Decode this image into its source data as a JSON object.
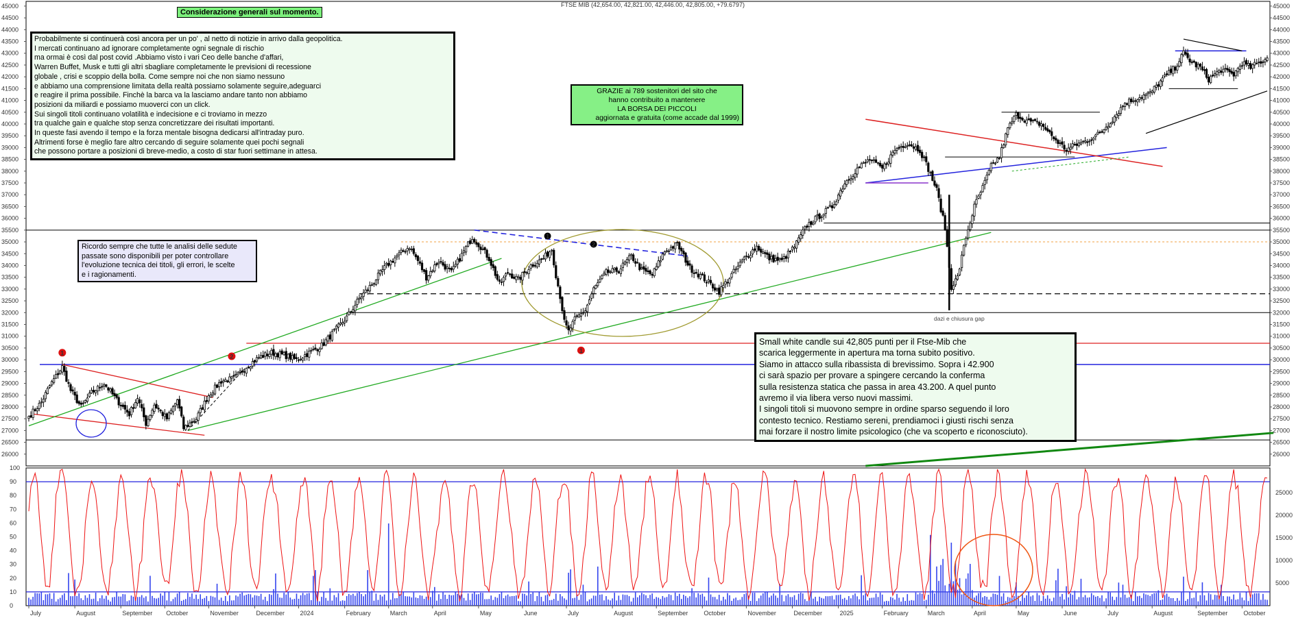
{
  "chart_data": {
    "type": "candlestick",
    "title": "FTSE MIB (42,654.00, 42,821.00, 42,446.00, 42,805.00, +79.6797)",
    "x_months": [
      "July",
      "August",
      "September",
      "October",
      "November",
      "December",
      "2024",
      "February",
      "March",
      "April",
      "May",
      "June",
      "July",
      "August",
      "September",
      "October",
      "November",
      "December",
      "2025",
      "February",
      "March",
      "April",
      "May",
      "June",
      "July",
      "August",
      "September",
      "October"
    ],
    "price_ylim": [
      25500,
      45200
    ],
    "price_ticks": [
      26000,
      26500,
      27000,
      27500,
      28000,
      28500,
      29000,
      29500,
      30000,
      30500,
      31000,
      31500,
      32000,
      32500,
      33000,
      33500,
      34000,
      34500,
      35000,
      35500,
      36000,
      36500,
      37000,
      37500,
      38000,
      38500,
      39000,
      39500,
      40000,
      40500,
      41000,
      41500,
      42000,
      42500,
      43000,
      43500,
      44000,
      44500,
      45000
    ],
    "close_anchors": [
      [
        0,
        27600
      ],
      [
        6,
        28200
      ],
      [
        10,
        28900
      ],
      [
        16,
        29700
      ],
      [
        20,
        28700
      ],
      [
        25,
        28000
      ],
      [
        30,
        28600
      ],
      [
        36,
        29000
      ],
      [
        42,
        28300
      ],
      [
        48,
        27700
      ],
      [
        52,
        28400
      ],
      [
        56,
        27300
      ],
      [
        60,
        28100
      ],
      [
        66,
        27500
      ],
      [
        71,
        28300
      ],
      [
        74,
        27100
      ],
      [
        80,
        27500
      ],
      [
        86,
        28500
      ],
      [
        92,
        29100
      ],
      [
        98,
        29200
      ],
      [
        104,
        29700
      ],
      [
        110,
        30100
      ],
      [
        116,
        30300
      ],
      [
        122,
        30200
      ],
      [
        128,
        30000
      ],
      [
        134,
        30300
      ],
      [
        140,
        30600
      ],
      [
        146,
        31200
      ],
      [
        152,
        31800
      ],
      [
        158,
        32600
      ],
      [
        164,
        33200
      ],
      [
        170,
        33900
      ],
      [
        176,
        34400
      ],
      [
        182,
        34800
      ],
      [
        186,
        34200
      ],
      [
        190,
        33500
      ],
      [
        196,
        34200
      ],
      [
        202,
        33700
      ],
      [
        208,
        34600
      ],
      [
        212,
        35200
      ],
      [
        216,
        34800
      ],
      [
        220,
        34300
      ],
      [
        225,
        33200
      ],
      [
        229,
        33700
      ],
      [
        234,
        33400
      ],
      [
        240,
        34000
      ],
      [
        246,
        34300
      ],
      [
        250,
        34700
      ],
      [
        252,
        33600
      ],
      [
        254,
        32700
      ],
      [
        256,
        31600
      ],
      [
        258,
        31200
      ],
      [
        261,
        31700
      ],
      [
        266,
        32100
      ],
      [
        270,
        33000
      ],
      [
        276,
        33700
      ],
      [
        282,
        33800
      ],
      [
        288,
        34400
      ],
      [
        293,
        33800
      ],
      [
        298,
        33600
      ],
      [
        304,
        34600
      ],
      [
        310,
        34900
      ],
      [
        316,
        33900
      ],
      [
        322,
        33500
      ],
      [
        326,
        33200
      ],
      [
        330,
        32900
      ],
      [
        336,
        33600
      ],
      [
        342,
        34300
      ],
      [
        348,
        34800
      ],
      [
        354,
        34300
      ],
      [
        360,
        34200
      ],
      [
        366,
        34800
      ],
      [
        372,
        35700
      ],
      [
        378,
        36100
      ],
      [
        384,
        36500
      ],
      [
        390,
        37500
      ],
      [
        396,
        38100
      ],
      [
        402,
        38500
      ],
      [
        408,
        38100
      ],
      [
        414,
        38900
      ],
      [
        420,
        39200
      ],
      [
        426,
        38900
      ],
      [
        430,
        38100
      ],
      [
        434,
        37200
      ],
      [
        438,
        35600
      ],
      [
        441,
        33100
      ],
      [
        444,
        33500
      ],
      [
        448,
        35200
      ],
      [
        452,
        36500
      ],
      [
        456,
        37300
      ],
      [
        460,
        38200
      ],
      [
        464,
        38600
      ],
      [
        468,
        39800
      ],
      [
        472,
        40400
      ],
      [
        478,
        40100
      ],
      [
        484,
        40000
      ],
      [
        490,
        39400
      ],
      [
        496,
        38900
      ],
      [
        500,
        39100
      ],
      [
        506,
        39300
      ],
      [
        512,
        39600
      ],
      [
        518,
        40200
      ],
      [
        524,
        40900
      ],
      [
        530,
        41100
      ],
      [
        536,
        41300
      ],
      [
        542,
        41900
      ],
      [
        548,
        42400
      ],
      [
        552,
        43000
      ],
      [
        556,
        42600
      ],
      [
        560,
        42400
      ],
      [
        564,
        41900
      ],
      [
        570,
        42300
      ],
      [
        576,
        42100
      ],
      [
        580,
        42600
      ],
      [
        584,
        42400
      ],
      [
        590,
        42700
      ],
      [
        592,
        42805
      ]
    ],
    "lower_panel": {
      "oscillator_ylim": [
        0,
        100
      ],
      "oscillator_ticks": [
        0,
        10,
        20,
        30,
        40,
        50,
        60,
        70,
        80,
        90,
        100
      ],
      "volume_ticks": [
        5000,
        10000,
        15000,
        20000,
        25000
      ],
      "reference_lines": [
        90,
        10
      ]
    },
    "annotation_markers": [
      "1",
      "2",
      "1",
      "2",
      "1"
    ],
    "gap_label": "dazi e chiusura gap"
  },
  "notes": {
    "title": "Considerazione generali sul momento.",
    "main": [
      "Probabilmente si continuerà così ancora per un po' , al netto di notizie in arrivo dalla geopolitica.",
      "I mercati continuano ad ignorare completamente ogni segnale di rischio",
      "ma ormai è così dal post covid .Abbiamo visto  i vari Ceo delle banche d'affari,",
      "Warren Buffet, Musk e tutti gli altri sbagliare completamente  le previsioni di recessione",
      "globale , crisi e scoppio della bolla. Come sempre noi che non siamo nessuno",
      "e abbiamo una comprensione limitata della realtà possiamo solamente seguire,adeguarci",
      "e reagire il prima possibile. Finchè la barca va la lasciamo andare tanto non abbiamo",
      "posizioni da miliardi e possiamo muoverci con un click.",
      "Sui singoli titoli continuano volatilità e indecisione e ci troviamo in mezzo",
      "tra qualche gain e qualche stop senza concretizzare dei risultati importanti.",
      "In queste fasi avendo il tempo e la forza mentale bisogna dedicarsi all'intraday puro.",
      "Altrimenti forse è meglio fare altro cercando di seguire solamente quei pochi segnali",
      "che possono portare a posizioni di breve-medio, a costo di star fuori settimane in attesa."
    ],
    "thanks": [
      "GRAZIE  ai 789  sostenitori del sito che",
      "hanno contribuito a mantenere",
      "LA BORSA DEI PICCOLI",
      "aggiornata e gratuita (come accade dal 1999)"
    ],
    "reminder": [
      "Ricordo sempre che tutte le analisi delle sedute",
      "passate sono disponibili per poter controllare",
      " l'evoluzione tecnica dei titoli, gli errori, le scelte",
      "e i ragionamenti."
    ],
    "comment": [
      "Small white candle sui 42,805 punti per il Ftse-Mib che",
      "scarica leggermente in apertura ma torna subito positivo.",
      "Siamo in attacco sulla ribassista di brevissimo. Sopra i 42.900",
      "ci sarà spazio per provare a spingere cercando la conferma",
      "sulla resistenza statica che passa in area 43.200. A quel punto",
      "avremo il via libera verso nuovi massimi.",
      "I singoli titoli si muovono sempre in ordine sparso seguendo il loro",
      "contesto tecnico. Restiamo sereni, prendiamoci i giusti rischi senza",
      "mai forzare il nostro limite psicologico (che va scoperto e riconosciuto)."
    ]
  },
  "colors": {
    "candles": "#000000",
    "support_blue": "#2222dd",
    "trend_red": "#dd2222",
    "trend_green": "#22aa22",
    "oscillator": "#ee1111",
    "volume": "#3344ee",
    "ellipse": "#a09a30",
    "marker": "#dd1111",
    "note_green": "#86f086",
    "note_light": "#eefbee",
    "note_lilac": "#e9e8fa"
  }
}
